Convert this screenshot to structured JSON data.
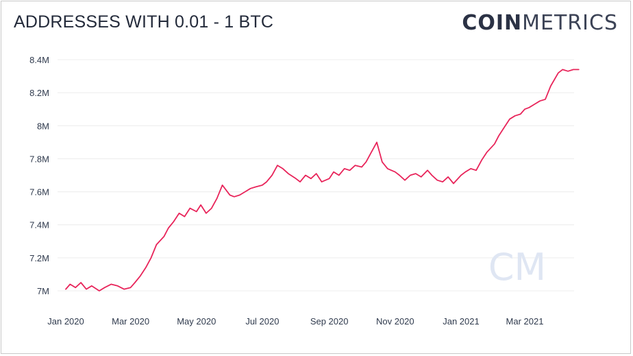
{
  "header": {
    "title": "ADDRESSES WITH 0.01 - 1 BTC",
    "brand_bold": "COIN",
    "brand_light": "METRICS"
  },
  "watermark": "CM",
  "chart_data": {
    "type": "line",
    "title": "ADDRESSES WITH 0.01 - 1 BTC",
    "xlabel": "",
    "ylabel": "",
    "ylim": [
      6.95,
      8.45
    ],
    "y_unit": "M",
    "y_ticks": [
      7.0,
      7.2,
      7.4,
      7.6,
      7.8,
      8.0,
      8.2,
      8.4
    ],
    "y_tick_labels": [
      "7M",
      "7.2M",
      "7.4M",
      "7.6M",
      "7.8M",
      "8M",
      "8.2M",
      "8.4M"
    ],
    "x_ticks": [
      "2020-01",
      "2020-03",
      "2020-05",
      "2020-07",
      "2020-09",
      "2020-11",
      "2021-01",
      "2021-03"
    ],
    "x_tick_labels": [
      "Jan 2020",
      "Mar 2020",
      "May 2020",
      "Jul 2020",
      "Sep 2020",
      "Nov 2020",
      "Jan 2021",
      "Mar 2021"
    ],
    "grid": true,
    "line_color": "#e8245a",
    "series": [
      {
        "x": [
          "2020-01-01",
          "2020-01-05",
          "2020-01-10",
          "2020-01-15",
          "2020-01-20",
          "2020-01-25",
          "2020-02-01",
          "2020-02-06",
          "2020-02-12",
          "2020-02-18",
          "2020-02-24",
          "2020-03-01",
          "2020-03-05",
          "2020-03-10",
          "2020-03-15",
          "2020-03-20",
          "2020-03-25",
          "2020-04-01",
          "2020-04-05",
          "2020-04-10",
          "2020-04-15",
          "2020-04-20",
          "2020-04-25",
          "2020-05-01",
          "2020-05-05",
          "2020-05-10",
          "2020-05-15",
          "2020-05-20",
          "2020-05-25",
          "2020-06-01",
          "2020-06-05",
          "2020-06-10",
          "2020-06-15",
          "2020-06-20",
          "2020-06-25",
          "2020-07-01",
          "2020-07-05",
          "2020-07-10",
          "2020-07-15",
          "2020-07-20",
          "2020-07-25",
          "2020-08-01",
          "2020-08-05",
          "2020-08-10",
          "2020-08-15",
          "2020-08-20",
          "2020-08-25",
          "2020-09-01",
          "2020-09-05",
          "2020-09-10",
          "2020-09-15",
          "2020-09-20",
          "2020-09-25",
          "2020-10-01",
          "2020-10-05",
          "2020-10-10",
          "2020-10-15",
          "2020-10-20",
          "2020-10-25",
          "2020-11-01",
          "2020-11-05",
          "2020-11-10",
          "2020-11-15",
          "2020-11-20",
          "2020-11-25",
          "2020-12-01",
          "2020-12-05",
          "2020-12-10",
          "2020-12-15",
          "2020-12-20",
          "2020-12-25",
          "2021-01-01",
          "2021-01-05",
          "2021-01-10",
          "2021-01-15",
          "2021-01-20",
          "2021-01-25",
          "2021-02-01",
          "2021-02-05",
          "2021-02-10",
          "2021-02-15",
          "2021-02-20",
          "2021-02-25",
          "2021-03-01",
          "2021-03-05",
          "2021-03-10",
          "2021-03-15",
          "2021-03-20",
          "2021-03-25",
          "2021-04-01",
          "2021-04-05",
          "2021-04-10",
          "2021-04-15",
          "2021-04-20"
        ],
        "values": [
          7.01,
          7.04,
          7.02,
          7.05,
          7.01,
          7.03,
          7.0,
          7.02,
          7.04,
          7.03,
          7.01,
          7.02,
          7.05,
          7.09,
          7.14,
          7.2,
          7.28,
          7.33,
          7.38,
          7.42,
          7.47,
          7.45,
          7.5,
          7.48,
          7.52,
          7.47,
          7.5,
          7.56,
          7.64,
          7.58,
          7.57,
          7.58,
          7.6,
          7.62,
          7.63,
          7.64,
          7.66,
          7.7,
          7.76,
          7.74,
          7.71,
          7.68,
          7.66,
          7.7,
          7.68,
          7.71,
          7.66,
          7.68,
          7.72,
          7.7,
          7.74,
          7.73,
          7.76,
          7.75,
          7.78,
          7.84,
          7.9,
          7.78,
          7.74,
          7.72,
          7.7,
          7.67,
          7.7,
          7.71,
          7.69,
          7.73,
          7.7,
          7.67,
          7.66,
          7.69,
          7.65,
          7.7,
          7.72,
          7.74,
          7.73,
          7.79,
          7.84,
          7.89,
          7.94,
          7.99,
          8.04,
          8.06,
          8.07,
          8.1,
          8.11,
          8.13,
          8.15,
          8.16,
          8.24,
          8.32,
          8.34,
          8.33,
          8.34,
          8.34
        ]
      }
    ]
  }
}
